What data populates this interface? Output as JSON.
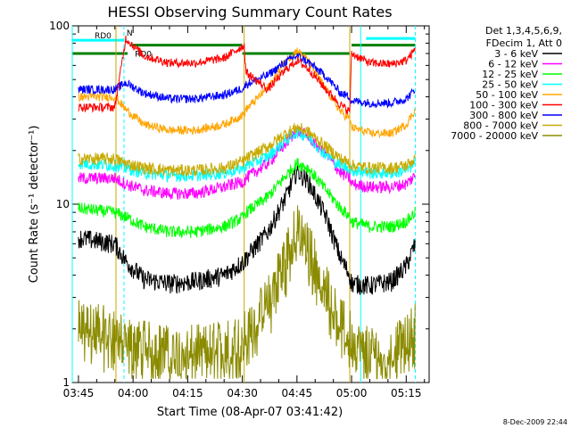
{
  "chart_data": {
    "type": "line",
    "title": "HESSI Observing Summary Count Rates",
    "xlabel": "Start Time (08-Apr-07 03:41:42)",
    "ylabel": "Count Rate (s⁻¹ detector⁻¹)",
    "yscale": "log",
    "ylim": [
      1,
      100
    ],
    "xlim_minutes": [
      -1.7,
      96.3
    ],
    "x_ticks": [
      {
        "label": "03:45",
        "minutes": 0
      },
      {
        "label": "04:00",
        "minutes": 15
      },
      {
        "label": "04:15",
        "minutes": 30
      },
      {
        "label": "04:30",
        "minutes": 45
      },
      {
        "label": "04:45",
        "minutes": 60
      },
      {
        "label": "05:00",
        "minutes": 75
      },
      {
        "label": "05:15",
        "minutes": 90
      }
    ],
    "y_ticks": [
      {
        "label": "1",
        "value": 1
      },
      {
        "label": "10",
        "value": 10
      },
      {
        "label": "100",
        "value": 100
      }
    ],
    "legend_position": "right",
    "legend_header": [
      "Det 1,3,4,5,6,9,",
      "FDecim 1, Att 0"
    ],
    "x": [
      0,
      10,
      13,
      18,
      25,
      32,
      40,
      45.5,
      46,
      52,
      57,
      60,
      63,
      68,
      72,
      74.5,
      75,
      80,
      86,
      90,
      92.5
    ],
    "series": [
      {
        "name": "3 - 6 keV",
        "color": "#000000",
        "noise": 0.08,
        "values": [
          6.5,
          6.0,
          4.8,
          3.8,
          3.6,
          3.7,
          4.0,
          4.8,
          5.0,
          7.0,
          11.0,
          15.5,
          13.5,
          8.5,
          5.0,
          4.0,
          3.6,
          3.5,
          3.7,
          4.5,
          6.0
        ]
      },
      {
        "name": "6 - 12 keV",
        "color": "#ff00ff",
        "noise": 0.05,
        "values": [
          14,
          14,
          13,
          12,
          11.5,
          11.5,
          12.5,
          13.5,
          14,
          17,
          22,
          26,
          24,
          19,
          15,
          14,
          13,
          12.5,
          12.5,
          13,
          14.5
        ]
      },
      {
        "name": "12 - 25 keV",
        "color": "#00ff00",
        "noise": 0.05,
        "values": [
          9.5,
          9,
          8.5,
          7.5,
          7,
          7,
          7.5,
          8.5,
          9,
          11,
          14.5,
          17,
          16,
          12,
          9.5,
          8.5,
          8,
          7.5,
          7.5,
          8,
          9
        ]
      },
      {
        "name": "25 - 50 keV",
        "color": "#00ffff",
        "noise": 0.05,
        "values": [
          17,
          16.5,
          16,
          15,
          14.5,
          14.5,
          15,
          16,
          16.5,
          18.5,
          23,
          25.5,
          24,
          19,
          16.5,
          16,
          15.5,
          15,
          15,
          15.5,
          17
        ]
      },
      {
        "name": "50 - 100 keV",
        "color": "#ffa500",
        "noise": 0.035,
        "values": [
          40,
          40,
          34,
          28,
          26,
          26,
          28,
          32,
          34,
          45,
          64,
          73,
          64,
          44,
          33,
          30,
          27,
          25,
          25,
          28,
          34
        ]
      },
      {
        "name": "100 - 300 keV",
        "color": "#ff0000",
        "noise": 0.035,
        "values": [
          35,
          35,
          85,
          68,
          62,
          62,
          66,
          78,
          55,
          44,
          57,
          64,
          58,
          44,
          36,
          33,
          70,
          62,
          61,
          64,
          74
        ]
      },
      {
        "name": "300 - 800 keV",
        "color": "#0000ff",
        "noise": 0.035,
        "values": [
          44,
          44,
          48,
          42,
          39,
          39,
          41,
          45,
          47,
          53,
          63,
          68,
          63,
          52,
          42,
          40,
          38,
          37,
          37,
          39,
          44
        ]
      },
      {
        "name": "800 - 7000 keV",
        "color": "#c8aa00",
        "noise": 0.05,
        "values": [
          18,
          18,
          17,
          16,
          15.5,
          15.5,
          16,
          17.5,
          18,
          21,
          25,
          27,
          25.5,
          21,
          18,
          17,
          16.5,
          16,
          16,
          16.5,
          18
        ]
      },
      {
        "name": "7000 - 20000 keV",
        "color": "#8b8b00",
        "noise": 0.2,
        "low": 1.2,
        "values": [
          2.2,
          2.0,
          1.8,
          1.7,
          1.6,
          1.6,
          1.7,
          1.9,
          2.0,
          3.0,
          5.5,
          7.8,
          6.2,
          3.6,
          2.3,
          2.0,
          1.7,
          1.6,
          1.6,
          1.8,
          2.2
        ]
      }
    ],
    "flag_bars": [
      {
        "label": "RD0",
        "y": 83,
        "x_start": -1.7,
        "x_end": 12.5,
        "color": "#00ffff"
      },
      {
        "label": "RD0",
        "y": 78,
        "x_start": 14.5,
        "x_end": 45,
        "color": "#008000"
      },
      {
        "label": "",
        "y": 70,
        "x_start": -1.7,
        "x_end": 13.5,
        "color": "#008000"
      },
      {
        "label": "",
        "y": 70,
        "x_start": 45,
        "x_end": 74.5,
        "color": "#008000"
      },
      {
        "label": "",
        "y": 78,
        "x_start": 75,
        "x_end": 92.5,
        "color": "#008000"
      },
      {
        "label": "",
        "y": 85,
        "x_start": 79,
        "x_end": 92.5,
        "color": "#00ffff"
      }
    ],
    "flag_label_n": "N",
    "vertical_markers": [
      {
        "minutes": -1.7,
        "color": "#00ffff",
        "style": "solid"
      },
      {
        "minutes": 12.5,
        "color": "#00ffff",
        "style": "dashed"
      },
      {
        "minutes": 10.3,
        "color": "#c8aa00",
        "style": "solid"
      },
      {
        "minutes": 45.5,
        "color": "#c8aa00",
        "style": "solid"
      },
      {
        "minutes": 74.5,
        "color": "#c8aa00",
        "style": "solid"
      },
      {
        "minutes": 77.5,
        "color": "#00ffff",
        "style": "solid"
      },
      {
        "minutes": 92.5,
        "color": "#00ffff",
        "style": "dashed"
      }
    ],
    "footer_date": "8-Dec-2009 22:44"
  }
}
